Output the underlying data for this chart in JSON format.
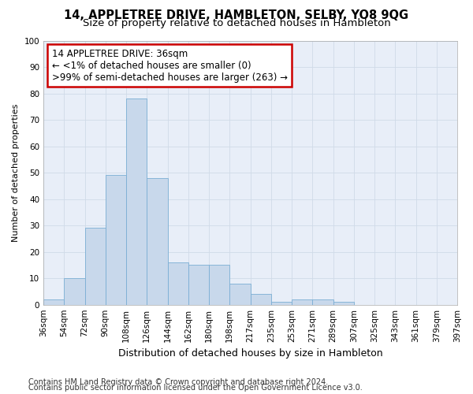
{
  "title": "14, APPLETREE DRIVE, HAMBLETON, SELBY, YO8 9QG",
  "subtitle": "Size of property relative to detached houses in Hambleton",
  "xlabel": "Distribution of detached houses by size in Hambleton",
  "ylabel": "Number of detached properties",
  "bar_values": [
    2,
    10,
    29,
    49,
    78,
    48,
    16,
    15,
    15,
    8,
    4,
    1,
    2,
    2,
    1,
    0,
    0,
    0,
    0,
    0
  ],
  "bin_labels": [
    "36sqm",
    "54sqm",
    "72sqm",
    "90sqm",
    "108sqm",
    "126sqm",
    "144sqm",
    "162sqm",
    "180sqm",
    "198sqm",
    "217sqm",
    "235sqm",
    "253sqm",
    "271sqm",
    "289sqm",
    "307sqm",
    "325sqm",
    "343sqm",
    "361sqm",
    "379sqm",
    "397sqm"
  ],
  "bar_color": "#c8d8eb",
  "bar_edge_color": "#7aaed4",
  "annotation_text": "14 APPLETREE DRIVE: 36sqm\n← <1% of detached houses are smaller (0)\n>99% of semi-detached houses are larger (263) →",
  "annotation_box_color": "#ffffff",
  "annotation_box_edge_color": "#cc0000",
  "ylim": [
    0,
    100
  ],
  "yticks": [
    0,
    10,
    20,
    30,
    40,
    50,
    60,
    70,
    80,
    90,
    100
  ],
  "grid_color": "#d0dae8",
  "bg_color": "#ffffff",
  "plot_bg_color": "#e8eef8",
  "footer_line1": "Contains HM Land Registry data © Crown copyright and database right 2024.",
  "footer_line2": "Contains public sector information licensed under the Open Government Licence v3.0.",
  "title_fontsize": 10.5,
  "subtitle_fontsize": 9.5,
  "xlabel_fontsize": 9,
  "ylabel_fontsize": 8,
  "tick_fontsize": 7.5,
  "annotation_fontsize": 8.5,
  "footer_fontsize": 7
}
